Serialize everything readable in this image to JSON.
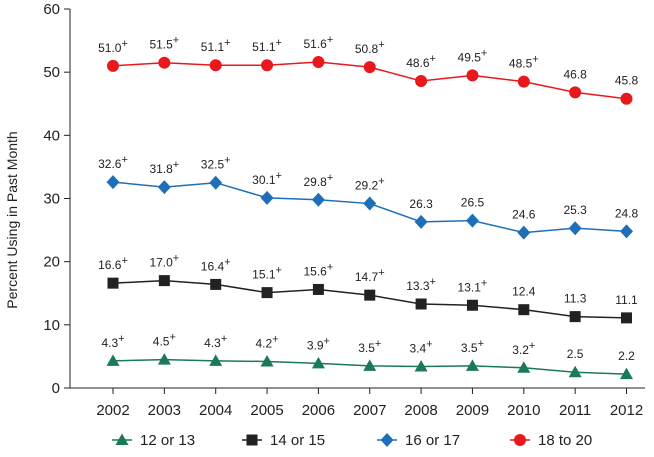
{
  "chart_data": {
    "type": "line",
    "title": "",
    "xlabel": "",
    "ylabel": "Percent Using in Past Month",
    "ylim": [
      0,
      60
    ],
    "yticks": [
      "0",
      "10",
      "20",
      "30",
      "40",
      "50",
      "60"
    ],
    "grid": false,
    "legend_position": "bottom",
    "categories": [
      "2002",
      "2003",
      "2004",
      "2005",
      "2006",
      "2007",
      "2008",
      "2009",
      "2010",
      "2011",
      "2012"
    ],
    "series": [
      {
        "name": "12 or 13",
        "color": "#1a7a56",
        "marker": "triangle",
        "values": [
          4.3,
          4.5,
          4.3,
          4.2,
          3.9,
          3.5,
          3.4,
          3.5,
          3.2,
          2.5,
          2.2
        ],
        "labels": [
          "4.3",
          "4.5",
          "4.3",
          "4.2",
          "3.9",
          "3.5",
          "3.4",
          "3.5",
          "3.2",
          "2.5",
          "2.2"
        ],
        "plus": [
          true,
          true,
          true,
          true,
          true,
          true,
          true,
          true,
          true,
          false,
          false
        ]
      },
      {
        "name": "14 or 15",
        "color": "#222222",
        "marker": "square",
        "values": [
          16.6,
          17.0,
          16.4,
          15.1,
          15.6,
          14.7,
          13.3,
          13.1,
          12.4,
          11.3,
          11.1
        ],
        "labels": [
          "16.6",
          "17.0",
          "16.4",
          "15.1",
          "15.6",
          "14.7",
          "13.3",
          "13.1",
          "12.4",
          "11.3",
          "11.1"
        ],
        "plus": [
          true,
          true,
          true,
          true,
          true,
          true,
          true,
          true,
          false,
          false,
          false
        ]
      },
      {
        "name": "16 or 17",
        "color": "#1f6fb8",
        "marker": "diamond",
        "values": [
          32.6,
          31.8,
          32.5,
          30.1,
          29.8,
          29.2,
          26.3,
          26.5,
          24.6,
          25.3,
          24.8
        ],
        "labels": [
          "32.6",
          "31.8",
          "32.5",
          "30.1",
          "29.8",
          "29.2",
          "26.3",
          "26.5",
          "24.6",
          "25.3",
          "24.8"
        ],
        "plus": [
          true,
          true,
          true,
          true,
          true,
          true,
          false,
          false,
          false,
          false,
          false
        ]
      },
      {
        "name": "18 to 20",
        "color": "#e8191c",
        "marker": "circle",
        "values": [
          51.0,
          51.5,
          51.1,
          51.1,
          51.6,
          50.8,
          48.6,
          49.5,
          48.5,
          46.8,
          45.8
        ],
        "labels": [
          "51.0",
          "51.5",
          "51.1",
          "51.1",
          "51.6",
          "50.8",
          "48.6",
          "49.5",
          "48.5",
          "46.8",
          "45.8"
        ],
        "plus": [
          true,
          true,
          true,
          true,
          true,
          true,
          true,
          true,
          true,
          false,
          false
        ]
      }
    ],
    "plus_sign": "+"
  }
}
